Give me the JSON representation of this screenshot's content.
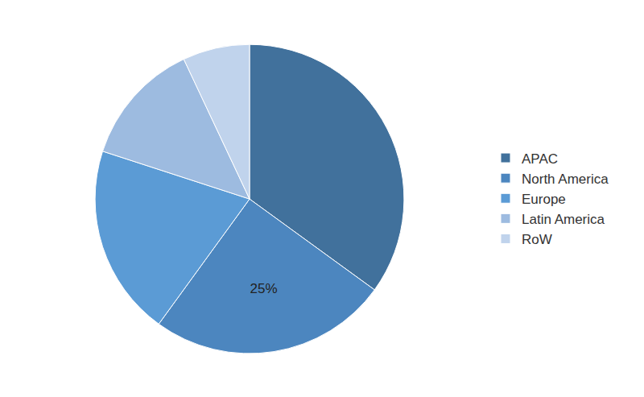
{
  "chart_data": {
    "type": "pie",
    "categories": [
      "APAC",
      "North America",
      "Europe",
      "Latin America",
      "RoW"
    ],
    "values": [
      35,
      25,
      20,
      13,
      7
    ],
    "value_labels": [
      null,
      "25%",
      null,
      null,
      null
    ],
    "colors": [
      "#41719c",
      "#4c86bf",
      "#5b9bd5",
      "#9dbbe0",
      "#c0d3ec"
    ],
    "legend": "right"
  }
}
